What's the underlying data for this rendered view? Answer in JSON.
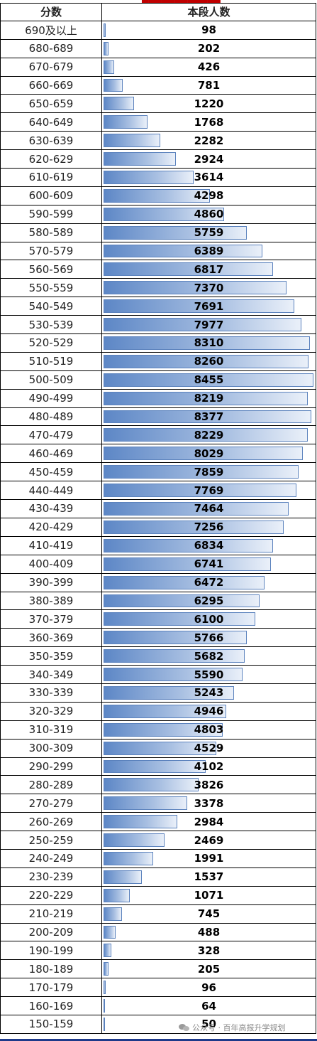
{
  "header": {
    "col1": "分数",
    "col2": "本段人数"
  },
  "max_value": 8455,
  "rows": [
    {
      "range": "690及以上",
      "count": 98
    },
    {
      "range": "680-689",
      "count": 202
    },
    {
      "range": "670-679",
      "count": 426
    },
    {
      "range": "660-669",
      "count": 781
    },
    {
      "range": "650-659",
      "count": 1220
    },
    {
      "range": "640-649",
      "count": 1768
    },
    {
      "range": "630-639",
      "count": 2282
    },
    {
      "range": "620-629",
      "count": 2924
    },
    {
      "range": "610-619",
      "count": 3614
    },
    {
      "range": "600-609",
      "count": 4298
    },
    {
      "range": "590-599",
      "count": 4860
    },
    {
      "range": "580-589",
      "count": 5759
    },
    {
      "range": "570-579",
      "count": 6389
    },
    {
      "range": "560-569",
      "count": 6817
    },
    {
      "range": "550-559",
      "count": 7370
    },
    {
      "range": "540-549",
      "count": 7691
    },
    {
      "range": "530-539",
      "count": 7977
    },
    {
      "range": "520-529",
      "count": 8310
    },
    {
      "range": "510-519",
      "count": 8260
    },
    {
      "range": "500-509",
      "count": 8455
    },
    {
      "range": "490-499",
      "count": 8219
    },
    {
      "range": "480-489",
      "count": 8377
    },
    {
      "range": "470-479",
      "count": 8229
    },
    {
      "range": "460-469",
      "count": 8029
    },
    {
      "range": "450-459",
      "count": 7859
    },
    {
      "range": "440-449",
      "count": 7769
    },
    {
      "range": "430-439",
      "count": 7464
    },
    {
      "range": "420-429",
      "count": 7256
    },
    {
      "range": "410-419",
      "count": 6834
    },
    {
      "range": "400-409",
      "count": 6741
    },
    {
      "range": "390-399",
      "count": 6472
    },
    {
      "range": "380-389",
      "count": 6295
    },
    {
      "range": "370-379",
      "count": 6100
    },
    {
      "range": "360-369",
      "count": 5766
    },
    {
      "range": "350-359",
      "count": 5682
    },
    {
      "range": "340-349",
      "count": 5590
    },
    {
      "range": "330-339",
      "count": 5243
    },
    {
      "range": "320-329",
      "count": 4946
    },
    {
      "range": "310-319",
      "count": 4803
    },
    {
      "range": "300-309",
      "count": 4529
    },
    {
      "range": "290-299",
      "count": 4102
    },
    {
      "range": "280-289",
      "count": 3826
    },
    {
      "range": "270-279",
      "count": 3378
    },
    {
      "range": "260-269",
      "count": 2984
    },
    {
      "range": "250-259",
      "count": 2469
    },
    {
      "range": "240-249",
      "count": 1991
    },
    {
      "range": "230-239",
      "count": 1537
    },
    {
      "range": "220-229",
      "count": 1071
    },
    {
      "range": "210-219",
      "count": 745
    },
    {
      "range": "200-209",
      "count": 488
    },
    {
      "range": "190-199",
      "count": 328
    },
    {
      "range": "180-189",
      "count": 205
    },
    {
      "range": "170-179",
      "count": 96
    },
    {
      "range": "160-169",
      "count": 64
    },
    {
      "range": "150-159",
      "count": 50
    }
  ],
  "watermark": "公众号 · 百年高报升学规划",
  "colors": {
    "bar_start": "#5d87c6",
    "bar_end": "#eaf0f9",
    "bar_border": "#5b82bd",
    "top_text": "#c00000"
  }
}
